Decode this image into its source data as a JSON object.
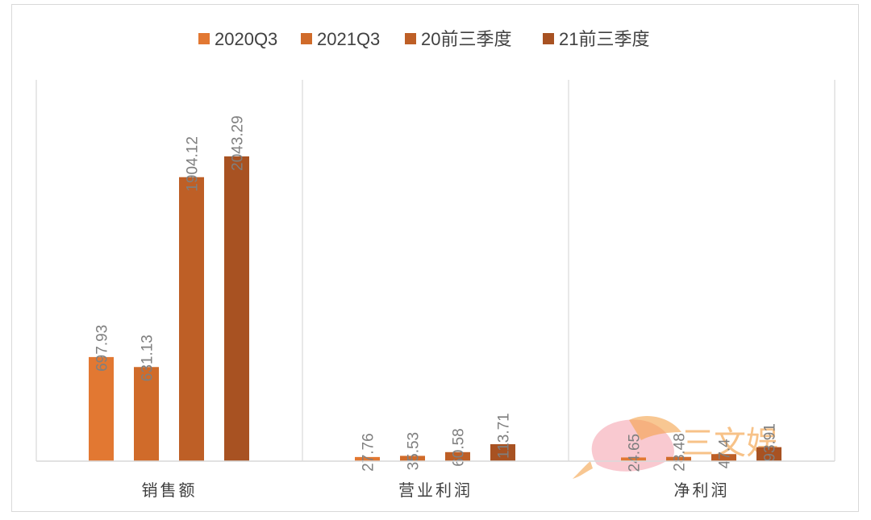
{
  "chart_data": {
    "type": "bar",
    "categories": [
      "销售额",
      "营业利润",
      "净利润"
    ],
    "series": [
      {
        "name": "2020Q3",
        "color": "#E27832",
        "values": [
          697.93,
          27.76,
          24.65
        ]
      },
      {
        "name": "2021Q3",
        "color": "#D06B2A",
        "values": [
          631.13,
          35.53,
          28.48
        ]
      },
      {
        "name": "20前三季度",
        "color": "#BE5F26",
        "values": [
          1904.12,
          60.58,
          47.4
        ]
      },
      {
        "name": "21前三季度",
        "color": "#A85222",
        "values": [
          2043.29,
          113.71,
          93.91
        ]
      }
    ],
    "legend": "top-center",
    "grid": false,
    "ylim": [
      0,
      2400
    ],
    "data_labels": true
  },
  "watermark": {
    "text": "三文娱",
    "icon": "fish-logo-icon"
  }
}
